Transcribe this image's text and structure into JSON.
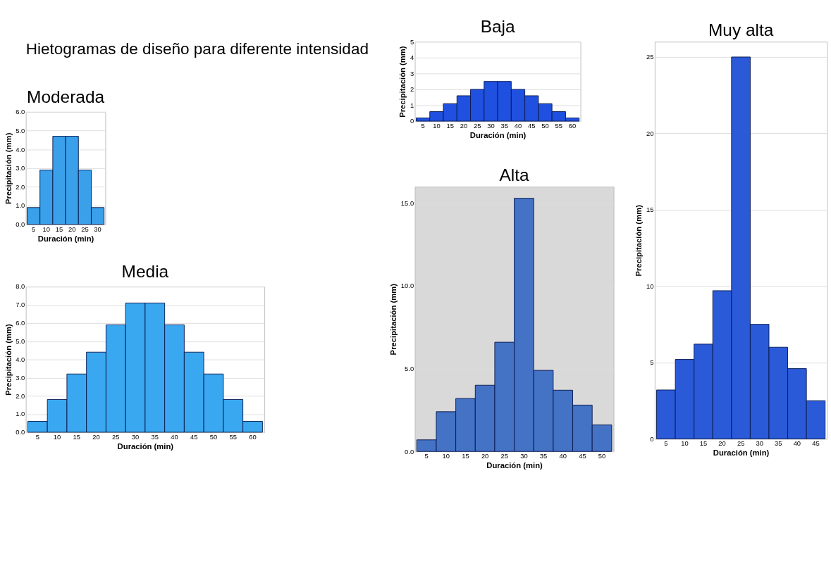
{
  "chart_data": [
    {
      "type": "bar",
      "title": "Moderada",
      "xlabel": "Duración (min)",
      "ylabel": "Precipitación (mm)",
      "annotations": [
        "Hietogramas de diseño para diferente intensidad"
      ],
      "categories": [
        "5",
        "10",
        "15",
        "20",
        "25",
        "30"
      ],
      "values": [
        0.9,
        2.9,
        4.7,
        4.7,
        2.9,
        0.9
      ],
      "color": "#3aa0ea",
      "ylim": [
        0,
        6
      ],
      "yticks": [
        {
          "value": 0,
          "label": "0.0"
        },
        {
          "value": 1,
          "label": "1.0"
        },
        {
          "value": 2,
          "label": "2.0"
        },
        {
          "value": 3,
          "label": "3.0"
        },
        {
          "value": 4,
          "label": "4.0"
        },
        {
          "value": 5,
          "label": "5.0"
        },
        {
          "value": 6,
          "label": "6.0"
        }
      ],
      "grid": "y"
    },
    {
      "type": "bar",
      "title": "Media",
      "xlabel": "Duración (min)",
      "ylabel": "Precipitación (mm)",
      "categories": [
        "5",
        "10",
        "15",
        "20",
        "25",
        "30",
        "35",
        "40",
        "45",
        "50",
        "55",
        "60"
      ],
      "values": [
        0.6,
        1.8,
        3.2,
        4.4,
        5.9,
        7.1,
        7.1,
        5.9,
        4.4,
        3.2,
        1.8,
        0.6
      ],
      "color": "#3aa8f0",
      "ylim": [
        0,
        8
      ],
      "yticks": [
        {
          "value": 0,
          "label": "0.0"
        },
        {
          "value": 1,
          "label": "1.0"
        },
        {
          "value": 2,
          "label": "2.0"
        },
        {
          "value": 3,
          "label": "3.0"
        },
        {
          "value": 4,
          "label": "4.0"
        },
        {
          "value": 5,
          "label": "5.0"
        },
        {
          "value": 6,
          "label": "6.0"
        },
        {
          "value": 7,
          "label": "7.0"
        },
        {
          "value": 8,
          "label": "8.0"
        }
      ],
      "grid": "y"
    },
    {
      "type": "bar",
      "title": "Baja",
      "xlabel": "Duración (min)",
      "ylabel": "Precipitación (mm)",
      "categories": [
        "5",
        "10",
        "15",
        "20",
        "25",
        "30",
        "35",
        "40",
        "45",
        "50",
        "55",
        "60"
      ],
      "values": [
        0.2,
        0.6,
        1.1,
        1.6,
        2.0,
        2.5,
        2.5,
        2.0,
        1.6,
        1.1,
        0.6,
        0.2
      ],
      "color": "#2050e0",
      "ylim": [
        0,
        5
      ],
      "yticks": [
        0,
        1,
        2,
        3,
        4,
        5
      ],
      "grid": "y"
    },
    {
      "type": "bar",
      "title": "Alta",
      "xlabel": "Duración (min)",
      "ylabel": "Precipitación (mm)",
      "categories": [
        "5",
        "10",
        "15",
        "20",
        "25",
        "30",
        "35",
        "40",
        "45",
        "50"
      ],
      "values": [
        0.7,
        2.4,
        3.2,
        4.0,
        6.6,
        15.3,
        4.9,
        3.7,
        2.8,
        1.6
      ],
      "color": "#4472c4",
      "ylim": [
        0,
        16
      ],
      "yticks": [
        {
          "value": 0,
          "label": "0.0"
        },
        {
          "value": 5,
          "label": "5.0"
        },
        {
          "value": 10,
          "label": "10.0"
        },
        {
          "value": 15,
          "label": "15.0"
        }
      ],
      "grid": "y"
    },
    {
      "type": "bar",
      "title": "Muy alta",
      "xlabel": "Duración (min)",
      "ylabel": "Precipitación (mm)",
      "categories": [
        "5",
        "10",
        "15",
        "20",
        "25",
        "30",
        "35",
        "40",
        "45"
      ],
      "values": [
        3.2,
        5.2,
        6.2,
        9.7,
        25,
        7.5,
        6.0,
        4.6,
        2.5
      ],
      "color": "#2a5ad8",
      "ylim": [
        0,
        26
      ],
      "yticks": [
        0,
        5,
        10,
        15,
        20,
        25
      ],
      "grid": "y"
    }
  ]
}
